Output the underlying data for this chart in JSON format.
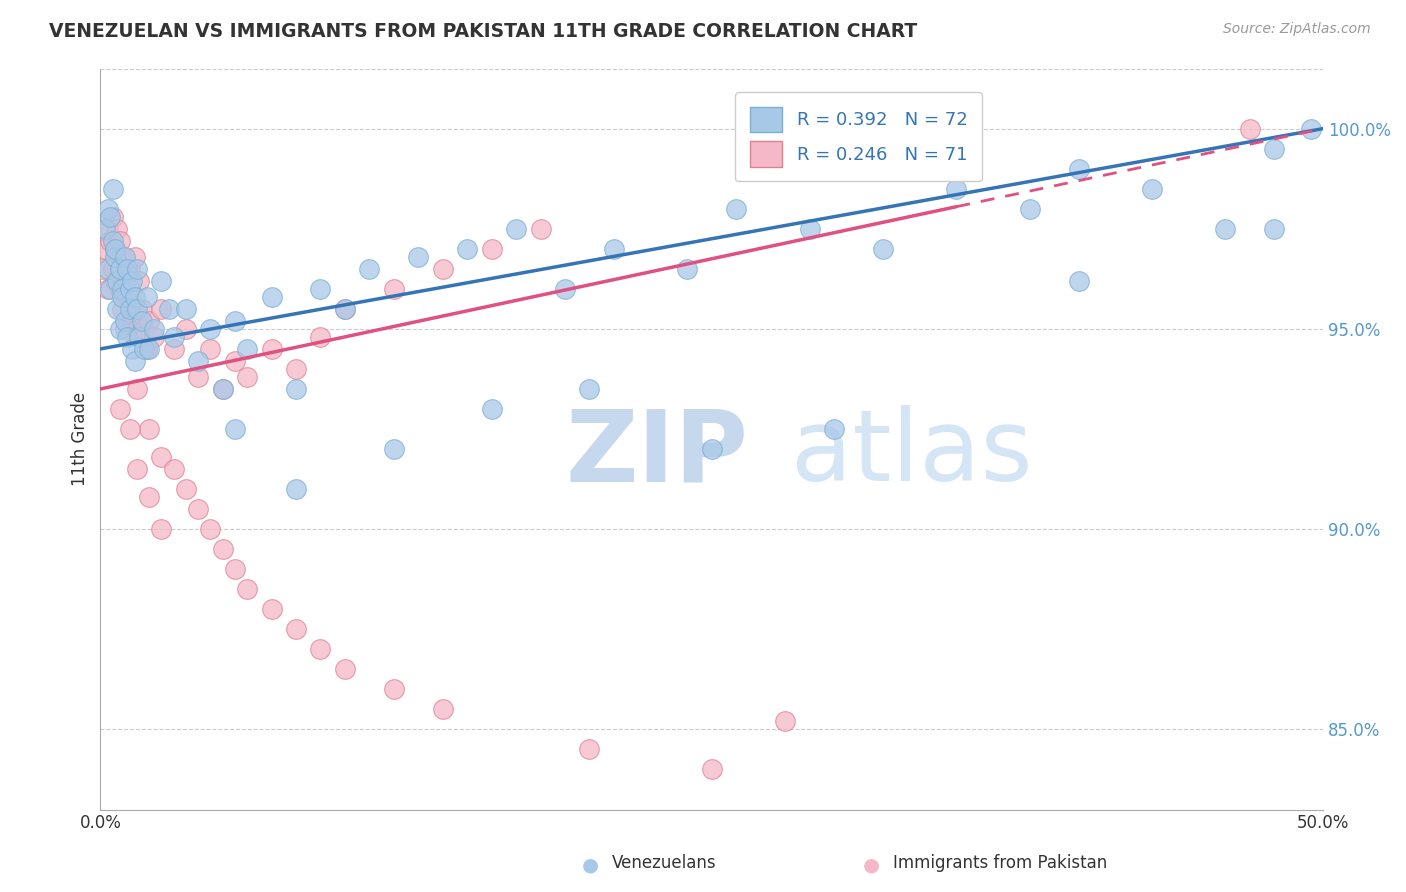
{
  "title": "VENEZUELAN VS IMMIGRANTS FROM PAKISTAN 11TH GRADE CORRELATION CHART",
  "source": "Source: ZipAtlas.com",
  "ylabel": "11th Grade",
  "x_range": [
    0.0,
    50.0
  ],
  "y_range": [
    83.0,
    101.5
  ],
  "legend_r1": "R = 0.392",
  "legend_n1": "N = 72",
  "legend_r2": "R = 0.246",
  "legend_n2": "N = 71",
  "color_blue": "#a8c8e8",
  "color_blue_edge": "#7aafd4",
  "color_pink": "#f4b8c8",
  "color_pink_edge": "#e08090",
  "color_blue_line": "#3575b5",
  "color_pink_line": "#e05080",
  "blue_scatter_x": [
    0.2,
    0.3,
    0.3,
    0.4,
    0.4,
    0.5,
    0.5,
    0.6,
    0.6,
    0.7,
    0.7,
    0.8,
    0.8,
    0.9,
    0.9,
    1.0,
    1.0,
    1.1,
    1.1,
    1.2,
    1.2,
    1.3,
    1.3,
    1.4,
    1.4,
    1.5,
    1.5,
    1.6,
    1.7,
    1.8,
    1.9,
    2.0,
    2.2,
    2.5,
    2.8,
    3.0,
    3.5,
    4.0,
    4.5,
    5.0,
    5.5,
    6.0,
    7.0,
    8.0,
    9.0,
    10.0,
    11.0,
    13.0,
    15.0,
    17.0,
    19.0,
    21.0,
    24.0,
    26.0,
    29.0,
    32.0,
    35.0,
    38.0,
    40.0,
    43.0,
    46.0,
    48.0,
    49.5,
    5.5,
    8.0,
    12.0,
    16.0,
    20.0,
    25.0,
    30.0,
    40.0,
    48.0
  ],
  "blue_scatter_y": [
    97.5,
    98.0,
    96.5,
    97.8,
    96.0,
    97.2,
    98.5,
    96.8,
    97.0,
    95.5,
    96.2,
    96.5,
    95.0,
    96.0,
    95.8,
    95.2,
    96.8,
    94.8,
    96.5,
    95.5,
    96.0,
    94.5,
    96.2,
    95.8,
    94.2,
    95.5,
    96.5,
    94.8,
    95.2,
    94.5,
    95.8,
    94.5,
    95.0,
    96.2,
    95.5,
    94.8,
    95.5,
    94.2,
    95.0,
    93.5,
    95.2,
    94.5,
    95.8,
    93.5,
    96.0,
    95.5,
    96.5,
    96.8,
    97.0,
    97.5,
    96.0,
    97.0,
    96.5,
    98.0,
    97.5,
    97.0,
    98.5,
    98.0,
    99.0,
    98.5,
    97.5,
    99.5,
    100.0,
    92.5,
    91.0,
    92.0,
    93.0,
    93.5,
    92.0,
    92.5,
    96.2,
    97.5
  ],
  "pink_scatter_x": [
    0.1,
    0.2,
    0.3,
    0.3,
    0.4,
    0.5,
    0.5,
    0.6,
    0.6,
    0.7,
    0.8,
    0.8,
    0.9,
    0.9,
    1.0,
    1.0,
    1.1,
    1.2,
    1.2,
    1.3,
    1.4,
    1.4,
    1.5,
    1.6,
    1.6,
    1.7,
    1.8,
    1.9,
    2.0,
    2.2,
    2.5,
    3.0,
    3.5,
    4.0,
    4.5,
    5.0,
    5.5,
    6.0,
    7.0,
    8.0,
    9.0,
    10.0,
    12.0,
    14.0,
    16.0,
    18.0,
    1.5,
    2.0,
    2.5,
    3.0,
    3.5,
    4.0,
    4.5,
    5.0,
    5.5,
    6.0,
    7.0,
    8.0,
    9.0,
    10.0,
    12.0,
    14.0,
    20.0,
    25.0,
    28.0,
    0.8,
    1.2,
    1.5,
    2.0,
    2.5,
    47.0
  ],
  "pink_scatter_y": [
    96.5,
    97.0,
    97.5,
    96.0,
    97.2,
    96.5,
    97.8,
    96.2,
    97.0,
    97.5,
    96.0,
    97.2,
    95.5,
    96.8,
    95.0,
    96.5,
    95.8,
    96.0,
    96.5,
    95.2,
    96.8,
    95.5,
    95.0,
    96.2,
    94.8,
    95.5,
    95.0,
    94.5,
    95.2,
    94.8,
    95.5,
    94.5,
    95.0,
    93.8,
    94.5,
    93.5,
    94.2,
    93.8,
    94.5,
    94.0,
    94.8,
    95.5,
    96.0,
    96.5,
    97.0,
    97.5,
    93.5,
    92.5,
    91.8,
    91.5,
    91.0,
    90.5,
    90.0,
    89.5,
    89.0,
    88.5,
    88.0,
    87.5,
    87.0,
    86.5,
    86.0,
    85.5,
    84.5,
    84.0,
    85.2,
    93.0,
    92.5,
    91.5,
    90.8,
    90.0,
    100.0
  ]
}
